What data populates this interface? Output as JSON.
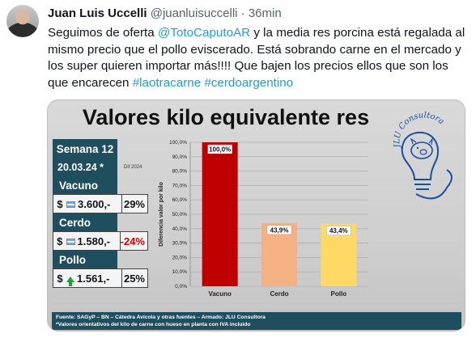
{
  "tweet": {
    "author_name": "Juan Luis Uccelli",
    "handle": "@juanluisuccelli",
    "separator": "·",
    "time": "36min",
    "text_1": "Seguimos de oferta ",
    "mention": "@TotoCaputoAR",
    "text_2": " y la media res porcina está regalada al mismo precio que el pollo eviscerado. Está sobrando carne en el mercado y los super quieren importar más!!!! Que bajen los precios ellos que son los que encarecen ",
    "hashtag_1": "#laotracarne",
    "text_3": " ",
    "hashtag_2": "#cerdoargentino"
  },
  "image": {
    "title": "Valores kilo equivalente res",
    "logo_text": "JLU Consultora",
    "table": {
      "week": "Semana 12",
      "date": "20.03.24 *",
      "dif_label": "Dif 2024",
      "rows": [
        {
          "category": "Vacuno",
          "currency": "$",
          "price": "3.600,-",
          "pct": "29%"
        },
        {
          "category": "Cerdo",
          "currency": "$",
          "price": "1.580,-",
          "pct": "-24%"
        },
        {
          "category": "Pollo",
          "currency": "$",
          "price": "1.561,-",
          "pct": "25%"
        }
      ]
    },
    "footer_line1": "Fuente: SAGyP – BN – Cátedra Avícola y otras fuentes – Armado: JLU Consultora",
    "footer_line2": "*Valores orientativos del kilo de carne con hueso en planta con IVA  incluido"
  },
  "chart_data": {
    "type": "bar",
    "categories": [
      "Vacuno",
      "Cerdo",
      "Pollo"
    ],
    "values": [
      100.0,
      43.9,
      43.4
    ],
    "data_labels": [
      "100,0%",
      "43,9%",
      "43,4%"
    ],
    "ylabel": "Diferencia valor por kilo",
    "ylim": [
      0,
      100
    ],
    "yticks": [
      "0,0%",
      "10,0%",
      "20,0%",
      "30,0%",
      "40,0%",
      "50,0%",
      "60,0%",
      "70,0%",
      "80,0%",
      "90,0%",
      "100,0%"
    ],
    "colors": [
      "#c00000",
      "#f4b183",
      "#ffd966"
    ],
    "grid": true,
    "legend": "none"
  }
}
